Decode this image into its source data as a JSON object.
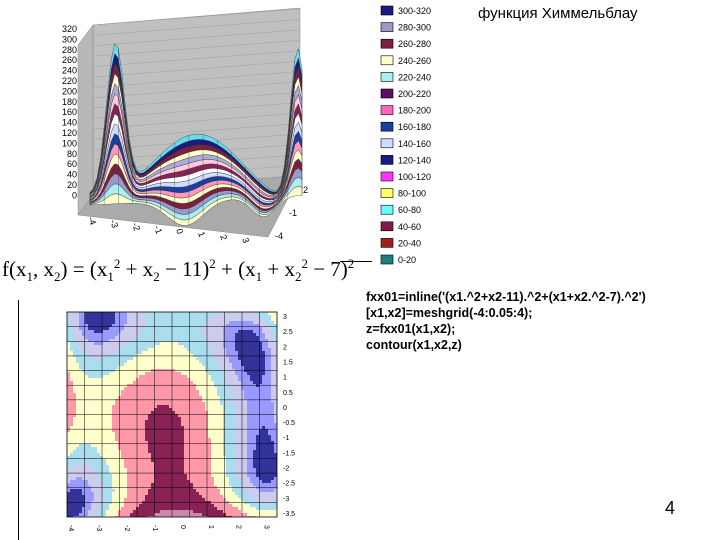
{
  "title": "функция Химмельблау",
  "formula": {
    "f": "f",
    "x1": "x",
    "sub1": "1",
    "x2": "x",
    "sub2": "2",
    "sq": "2",
    "c11": "11",
    "c7": "7"
  },
  "code_lines": [
    "fxx01=inline('(x1.^2+x2-11).^2+(x1+x2.^2-7).^2')",
    "[x1,x2]=meshgrid(-4:0.05:4);",
    "z=fxx01(x1,x2);",
    "contour(x1,x2,z)"
  ],
  "page_number": "4",
  "chart_data": [
    {
      "type": "surface",
      "z_ticks": [
        "320",
        "300",
        "280",
        "260",
        "240",
        "220",
        "200",
        "180",
        "160",
        "140",
        "120",
        "100",
        "80",
        "60",
        "40",
        "20",
        "0"
      ],
      "y_ticks": [
        "2",
        "-1",
        "-4"
      ],
      "x_ticks": [
        "-4",
        "-3",
        "-2",
        "-1",
        "0",
        "1",
        "2",
        "3"
      ],
      "zlim": [
        0,
        320
      ],
      "legend": [
        {
          "label": "300-320",
          "color": "#1a1a80"
        },
        {
          "label": "280-300",
          "color": "#9999cc"
        },
        {
          "label": "260-280",
          "color": "#7a1f3d"
        },
        {
          "label": "240-260",
          "color": "#ffffcc"
        },
        {
          "label": "220-240",
          "color": "#aaeeee"
        },
        {
          "label": "200-220",
          "color": "#5a1060"
        },
        {
          "label": "180-200",
          "color": "#ff66bb"
        },
        {
          "label": "160-180",
          "color": "#1a3fa0"
        },
        {
          "label": "140-160",
          "color": "#ccddff"
        },
        {
          "label": "120-140",
          "color": "#1a1a80"
        },
        {
          "label": "100-120",
          "color": "#ff33ff"
        },
        {
          "label": "80-100",
          "color": "#ffff66"
        },
        {
          "label": "60-80",
          "color": "#66ffff"
        },
        {
          "label": "40-60",
          "color": "#801a4d"
        },
        {
          "label": "20-40",
          "color": "#a02020"
        },
        {
          "label": "0-20",
          "color": "#1a8080"
        }
      ]
    },
    {
      "type": "contour",
      "y_ticks": [
        "3",
        "2.5",
        "2",
        "1.5",
        "1",
        "0.5",
        "0",
        "-0.5",
        "-1",
        "-1.5",
        "-2",
        "-2.5",
        "-3",
        "-3.5"
      ],
      "x_ticks": [
        "-4",
        "-3",
        "-2",
        "-1",
        "0",
        "1",
        "2",
        "3"
      ],
      "colors": [
        "#333399",
        "#9999ff",
        "#cccccc",
        "#aaddee",
        "#ffffcc",
        "#ff99aa",
        "#882255",
        "#cc88aa",
        "#3366cc",
        "#ff66ff"
      ]
    }
  ]
}
